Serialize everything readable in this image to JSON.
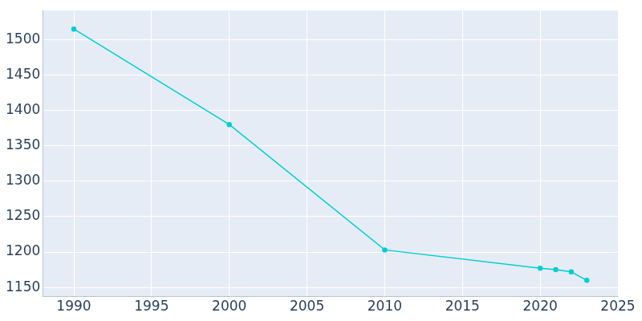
{
  "chart_data": {
    "type": "line",
    "x": [
      1990,
      2000,
      2010,
      2020,
      2021,
      2022,
      2023
    ],
    "values": [
      1515,
      1380,
      1203,
      1177,
      1175,
      1172,
      1160
    ],
    "color": "#00ced1",
    "marker": "circle",
    "xlim": [
      1988,
      2025
    ],
    "xticks": [
      1990,
      1995,
      2000,
      2005,
      2010,
      2015,
      2020,
      2025
    ],
    "ylim": [
      1137,
      1541
    ],
    "yticks": [
      1150,
      1200,
      1250,
      1300,
      1350,
      1400,
      1450,
      1500
    ],
    "grid": true
  }
}
